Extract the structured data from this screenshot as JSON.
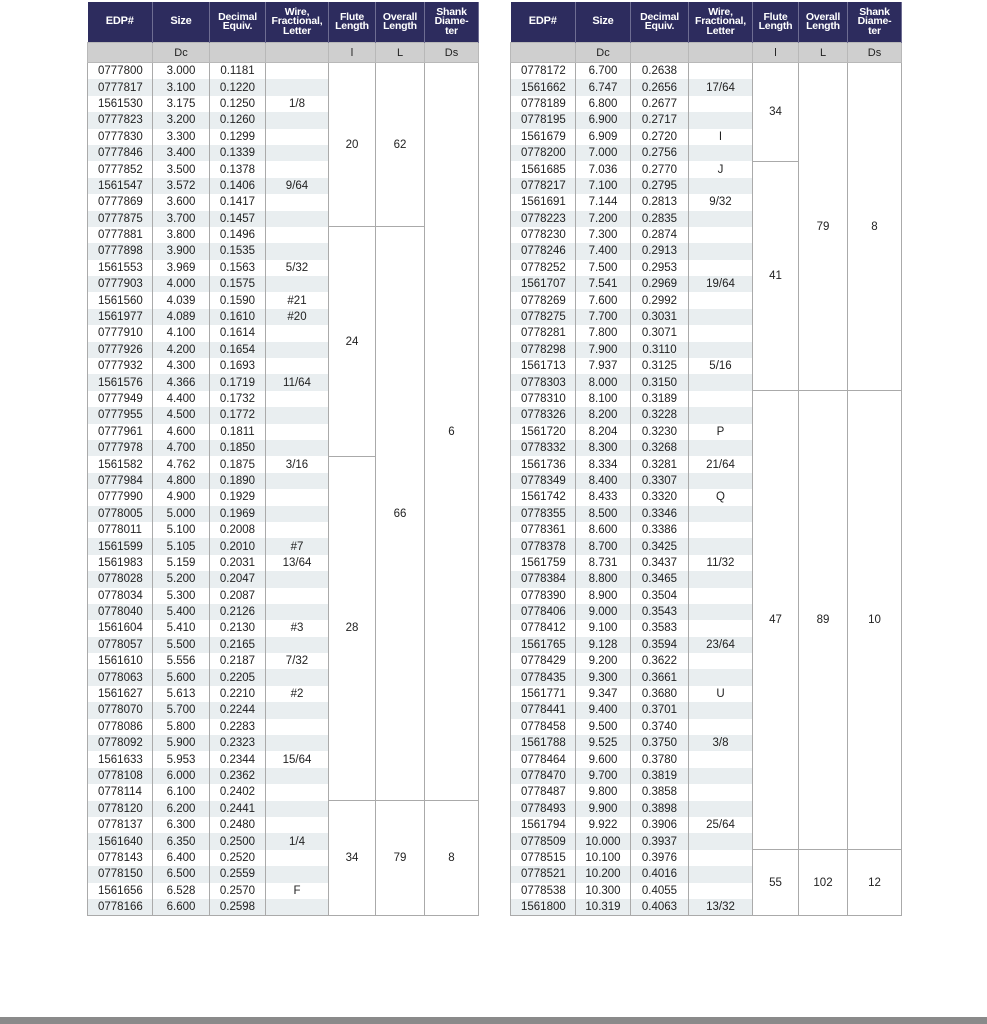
{
  "headers": [
    "EDP#",
    "Size",
    "Decimal\nEquiv.",
    "Wire,\nFractional,\nLetter",
    "Flute\nLength",
    "Overall\nLength",
    "Shank\nDiame-\nter"
  ],
  "subheaders": [
    "",
    "Dc",
    "",
    "",
    "l",
    "L",
    "Ds"
  ],
  "colors": {
    "header_bg": "#2d2c5e",
    "subheader_bg": "#cfcfcf",
    "stripe": "#e9eef0"
  },
  "tables": [
    {
      "rows": [
        [
          "0777800",
          "3.000",
          "0.1181",
          ""
        ],
        [
          "0777817",
          "3.100",
          "0.1220",
          ""
        ],
        [
          "1561530",
          "3.175",
          "0.1250",
          "1/8"
        ],
        [
          "0777823",
          "3.200",
          "0.1260",
          ""
        ],
        [
          "0777830",
          "3.300",
          "0.1299",
          ""
        ],
        [
          "0777846",
          "3.400",
          "0.1339",
          ""
        ],
        [
          "0777852",
          "3.500",
          "0.1378",
          ""
        ],
        [
          "1561547",
          "3.572",
          "0.1406",
          "9/64"
        ],
        [
          "0777869",
          "3.600",
          "0.1417",
          ""
        ],
        [
          "0777875",
          "3.700",
          "0.1457",
          ""
        ],
        [
          "0777881",
          "3.800",
          "0.1496",
          ""
        ],
        [
          "0777898",
          "3.900",
          "0.1535",
          ""
        ],
        [
          "1561553",
          "3.969",
          "0.1563",
          "5/32"
        ],
        [
          "0777903",
          "4.000",
          "0.1575",
          ""
        ],
        [
          "1561560",
          "4.039",
          "0.1590",
          "#21"
        ],
        [
          "1561977",
          "4.089",
          "0.1610",
          "#20"
        ],
        [
          "0777910",
          "4.100",
          "0.1614",
          ""
        ],
        [
          "0777926",
          "4.200",
          "0.1654",
          ""
        ],
        [
          "0777932",
          "4.300",
          "0.1693",
          ""
        ],
        [
          "1561576",
          "4.366",
          "0.1719",
          "11/64"
        ],
        [
          "0777949",
          "4.400",
          "0.1732",
          ""
        ],
        [
          "0777955",
          "4.500",
          "0.1772",
          ""
        ],
        [
          "0777961",
          "4.600",
          "0.1811",
          ""
        ],
        [
          "0777978",
          "4.700",
          "0.1850",
          ""
        ],
        [
          "1561582",
          "4.762",
          "0.1875",
          "3/16"
        ],
        [
          "0777984",
          "4.800",
          "0.1890",
          ""
        ],
        [
          "0777990",
          "4.900",
          "0.1929",
          ""
        ],
        [
          "0778005",
          "5.000",
          "0.1969",
          ""
        ],
        [
          "0778011",
          "5.100",
          "0.2008",
          ""
        ],
        [
          "1561599",
          "5.105",
          "0.2010",
          "#7"
        ],
        [
          "1561983",
          "5.159",
          "0.2031",
          "13/64"
        ],
        [
          "0778028",
          "5.200",
          "0.2047",
          ""
        ],
        [
          "0778034",
          "5.300",
          "0.2087",
          ""
        ],
        [
          "0778040",
          "5.400",
          "0.2126",
          ""
        ],
        [
          "1561604",
          "5.410",
          "0.2130",
          "#3"
        ],
        [
          "0778057",
          "5.500",
          "0.2165",
          ""
        ],
        [
          "1561610",
          "5.556",
          "0.2187",
          "7/32"
        ],
        [
          "0778063",
          "5.600",
          "0.2205",
          ""
        ],
        [
          "1561627",
          "5.613",
          "0.2210",
          "#2"
        ],
        [
          "0778070",
          "5.700",
          "0.2244",
          ""
        ],
        [
          "0778086",
          "5.800",
          "0.2283",
          ""
        ],
        [
          "0778092",
          "5.900",
          "0.2323",
          ""
        ],
        [
          "1561633",
          "5.953",
          "0.2344",
          "15/64"
        ],
        [
          "0778108",
          "6.000",
          "0.2362",
          ""
        ],
        [
          "0778114",
          "6.100",
          "0.2402",
          ""
        ],
        [
          "0778120",
          "6.200",
          "0.2441",
          ""
        ],
        [
          "0778137",
          "6.300",
          "0.2480",
          ""
        ],
        [
          "1561640",
          "6.350",
          "0.2500",
          "1/4"
        ],
        [
          "0778143",
          "6.400",
          "0.2520",
          ""
        ],
        [
          "0778150",
          "6.500",
          "0.2559",
          ""
        ],
        [
          "1561656",
          "6.528",
          "0.2570",
          "F"
        ],
        [
          "0778166",
          "6.600",
          "0.2598",
          ""
        ]
      ],
      "flute": [
        {
          "value": "20",
          "span": 10
        },
        {
          "value": "24",
          "span": 14
        },
        {
          "value": "28",
          "span": 21
        },
        {
          "value": "34",
          "span": 7
        }
      ],
      "overall": [
        {
          "value": "62",
          "span": 10
        },
        {
          "value": "66",
          "span": 35
        },
        {
          "value": "79",
          "span": 7
        }
      ],
      "shank": [
        {
          "value": "6",
          "span": 45
        },
        {
          "value": "8",
          "span": 7
        }
      ]
    },
    {
      "rows": [
        [
          "0778172",
          "6.700",
          "0.2638",
          ""
        ],
        [
          "1561662",
          "6.747",
          "0.2656",
          "17/64"
        ],
        [
          "0778189",
          "6.800",
          "0.2677",
          ""
        ],
        [
          "0778195",
          "6.900",
          "0.2717",
          ""
        ],
        [
          "1561679",
          "6.909",
          "0.2720",
          "I"
        ],
        [
          "0778200",
          "7.000",
          "0.2756",
          ""
        ],
        [
          "1561685",
          "7.036",
          "0.2770",
          "J"
        ],
        [
          "0778217",
          "7.100",
          "0.2795",
          ""
        ],
        [
          "1561691",
          "7.144",
          "0.2813",
          "9/32"
        ],
        [
          "0778223",
          "7.200",
          "0.2835",
          ""
        ],
        [
          "0778230",
          "7.300",
          "0.2874",
          ""
        ],
        [
          "0778246",
          "7.400",
          "0.2913",
          ""
        ],
        [
          "0778252",
          "7.500",
          "0.2953",
          ""
        ],
        [
          "1561707",
          "7.541",
          "0.2969",
          "19/64"
        ],
        [
          "0778269",
          "7.600",
          "0.2992",
          ""
        ],
        [
          "0778275",
          "7.700",
          "0.3031",
          ""
        ],
        [
          "0778281",
          "7.800",
          "0.3071",
          ""
        ],
        [
          "0778298",
          "7.900",
          "0.3110",
          ""
        ],
        [
          "1561713",
          "7.937",
          "0.3125",
          "5/16"
        ],
        [
          "0778303",
          "8.000",
          "0.3150",
          ""
        ],
        [
          "0778310",
          "8.100",
          "0.3189",
          ""
        ],
        [
          "0778326",
          "8.200",
          "0.3228",
          ""
        ],
        [
          "1561720",
          "8.204",
          "0.3230",
          "P"
        ],
        [
          "0778332",
          "8.300",
          "0.3268",
          ""
        ],
        [
          "1561736",
          "8.334",
          "0.3281",
          "21/64"
        ],
        [
          "0778349",
          "8.400",
          "0.3307",
          ""
        ],
        [
          "1561742",
          "8.433",
          "0.3320",
          "Q"
        ],
        [
          "0778355",
          "8.500",
          "0.3346",
          ""
        ],
        [
          "0778361",
          "8.600",
          "0.3386",
          ""
        ],
        [
          "0778378",
          "8.700",
          "0.3425",
          ""
        ],
        [
          "1561759",
          "8.731",
          "0.3437",
          "11/32"
        ],
        [
          "0778384",
          "8.800",
          "0.3465",
          ""
        ],
        [
          "0778390",
          "8.900",
          "0.3504",
          ""
        ],
        [
          "0778406",
          "9.000",
          "0.3543",
          ""
        ],
        [
          "0778412",
          "9.100",
          "0.3583",
          ""
        ],
        [
          "1561765",
          "9.128",
          "0.3594",
          "23/64"
        ],
        [
          "0778429",
          "9.200",
          "0.3622",
          ""
        ],
        [
          "0778435",
          "9.300",
          "0.3661",
          ""
        ],
        [
          "1561771",
          "9.347",
          "0.3680",
          "U"
        ],
        [
          "0778441",
          "9.400",
          "0.3701",
          ""
        ],
        [
          "0778458",
          "9.500",
          "0.3740",
          ""
        ],
        [
          "1561788",
          "9.525",
          "0.3750",
          "3/8"
        ],
        [
          "0778464",
          "9.600",
          "0.3780",
          ""
        ],
        [
          "0778470",
          "9.700",
          "0.3819",
          ""
        ],
        [
          "0778487",
          "9.800",
          "0.3858",
          ""
        ],
        [
          "0778493",
          "9.900",
          "0.3898",
          ""
        ],
        [
          "1561794",
          "9.922",
          "0.3906",
          "25/64"
        ],
        [
          "0778509",
          "10.000",
          "0.3937",
          ""
        ],
        [
          "0778515",
          "10.100",
          "0.3976",
          ""
        ],
        [
          "0778521",
          "10.200",
          "0.4016",
          ""
        ],
        [
          "0778538",
          "10.300",
          "0.4055",
          ""
        ],
        [
          "1561800",
          "10.319",
          "0.4063",
          "13/32"
        ]
      ],
      "flute": [
        {
          "value": "34",
          "span": 6
        },
        {
          "value": "41",
          "span": 14
        },
        {
          "value": "47",
          "span": 28
        },
        {
          "value": "55",
          "span": 4
        }
      ],
      "overall": [
        {
          "value": "79",
          "span": 20
        },
        {
          "value": "89",
          "span": 28
        },
        {
          "value": "102",
          "span": 4
        }
      ],
      "shank": [
        {
          "value": "8",
          "span": 20
        },
        {
          "value": "10",
          "span": 28
        },
        {
          "value": "12",
          "span": 4
        }
      ]
    }
  ]
}
